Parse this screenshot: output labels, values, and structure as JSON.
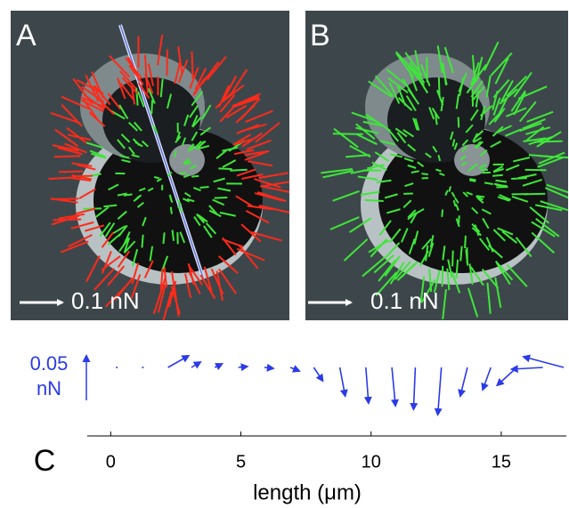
{
  "panels": [
    {
      "label": "A",
      "scale_label": "0.1 nN"
    },
    {
      "label": "B",
      "scale_label": "0.1 nN"
    }
  ],
  "chart_data": {
    "type": "quiver",
    "label": "C",
    "xlabel": "length (μm)",
    "color": "#2b3be8",
    "x": [
      0.2,
      1.2,
      2.2,
      3.1,
      4.0,
      4.9,
      5.9,
      6.9,
      7.8,
      8.8,
      9.8,
      10.8,
      11.7,
      12.7,
      13.7,
      14.6,
      15.6,
      16.6,
      17.4
    ],
    "u": [
      0.002,
      0.002,
      0.023,
      0.01,
      0.008,
      0.01,
      0.01,
      0.01,
      0.01,
      0.006,
      0.003,
      0.004,
      -0.002,
      -0.004,
      -0.008,
      -0.009,
      -0.022,
      -0.035,
      -0.045
    ],
    "v": [
      0,
      0,
      0.013,
      0.006,
      0.004,
      0.001,
      -0.001,
      -0.004,
      -0.015,
      -0.032,
      -0.04,
      -0.043,
      -0.047,
      -0.053,
      -0.032,
      -0.025,
      -0.02,
      -0.002,
      0.012
    ],
    "xlim": [
      -0.9,
      17.5
    ],
    "xticks": [
      0,
      5,
      10,
      15
    ],
    "scale_key": {
      "value": 0.05,
      "unit": "nN"
    }
  }
}
